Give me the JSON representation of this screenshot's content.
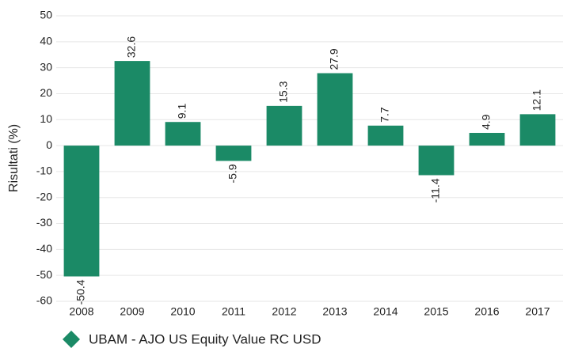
{
  "chart_data": {
    "type": "bar",
    "y_label": "Risultati (%)",
    "categories": [
      "2008",
      "2009",
      "2010",
      "2011",
      "2012",
      "2013",
      "2014",
      "2015",
      "2016",
      "2017"
    ],
    "series": [
      {
        "name": "UBAM - AJO US Equity Value RC USD",
        "color": "#1b8a66",
        "values": [
          -50.4,
          32.6,
          9.1,
          -5.9,
          15.3,
          27.9,
          7.7,
          -11.4,
          4.9,
          12.1
        ]
      }
    ],
    "ylim": [
      -60,
      50
    ],
    "yticks": [
      -60,
      -50,
      -40,
      -30,
      -20,
      -10,
      0,
      10,
      20,
      30,
      40,
      50
    ],
    "grid": true
  }
}
